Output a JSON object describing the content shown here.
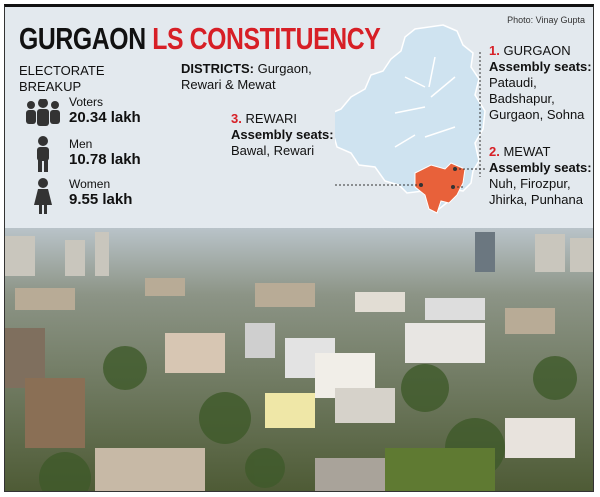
{
  "header": {
    "title_main": "GURGAON",
    "title_accent": "LS CONSTITUENCY",
    "credit": "Photo: Vinay Gupta"
  },
  "electorate": {
    "heading": "ELECTORATE BREAKUP",
    "items": [
      {
        "label": "Voters",
        "value": "20.34 lakh"
      },
      {
        "label": "Men",
        "value": "10.78 lakh"
      },
      {
        "label": "Women",
        "value": "9.55 lakh"
      }
    ]
  },
  "districts": {
    "label": "DISTRICTS:",
    "text": "Gurgaon, Rewari & Mewat"
  },
  "callouts": [
    {
      "number": "1.",
      "name": "GURGAON",
      "seats_label": "Assembly seats:",
      "seats": "Pataudi, Badshapur, Gurgaon, Sohna"
    },
    {
      "number": "2.",
      "name": "MEWAT",
      "seats_label": "Assembly seats:",
      "seats": "Nuh, Firozpur, Jhirka, Punhana"
    },
    {
      "number": "3.",
      "name": "REWARI",
      "seats_label": "Assembly seats:",
      "seats": "Bawal, Rewari"
    }
  ]
}
